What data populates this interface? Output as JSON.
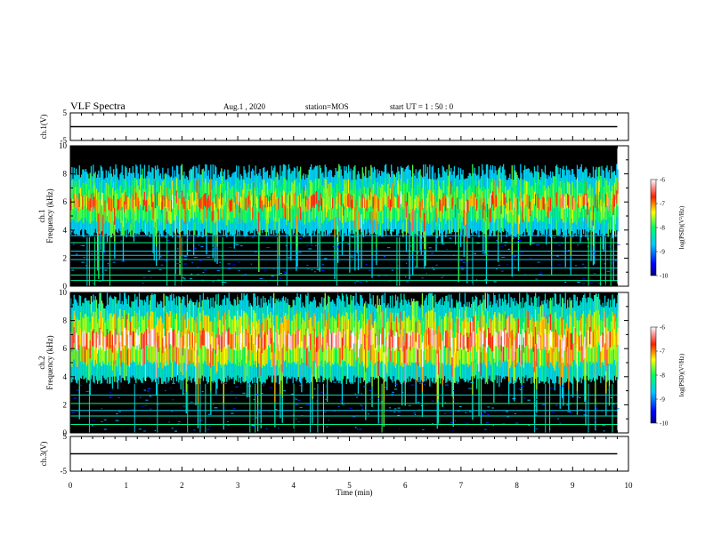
{
  "header": {
    "title": "VLF Spectra",
    "date": "Aug.1 , 2020",
    "station": "station=MOS",
    "start": "start UT = 1 : 50 : 0"
  },
  "colors": {
    "background": "#000000",
    "line": "#000000"
  },
  "chart_data": [
    {
      "type": "line",
      "panel": "ch1-waveform",
      "ylabel": "ch.1(V)",
      "ylim": [
        -5,
        5
      ],
      "yticks": [
        "5",
        "-5"
      ],
      "x": [
        0,
        9.8
      ],
      "values": [
        0,
        0
      ]
    },
    {
      "type": "heatmap",
      "panel": "ch1-spectrogram",
      "ylabel": "ch.1\nFrequency (kHz)",
      "ylabel_lines": [
        "ch.1",
        "Frequency (kHz)"
      ],
      "ylim": [
        0,
        10
      ],
      "yticks": [
        "0",
        "2",
        "4",
        "6",
        "8",
        "10"
      ],
      "xlim": [
        0,
        10
      ],
      "data_xmax": 9.8,
      "colorbar": {
        "label": "log(PSD)(V²/Hz)",
        "range": [
          -10,
          -6
        ],
        "ticks": [
          "-6",
          "-7",
          "-8",
          "-9",
          "-10"
        ]
      },
      "band_khz": [
        3.5,
        8.7
      ],
      "lines_khz": [
        0.4,
        0.8,
        1.3,
        1.9,
        2.2,
        2.5,
        3.1,
        3.6
      ]
    },
    {
      "type": "heatmap",
      "panel": "ch2-spectrogram",
      "ylabel": "ch.2\nFrequency (kHz)",
      "ylabel_lines": [
        "ch.2",
        "Frequency (kHz)"
      ],
      "ylim": [
        0,
        10
      ],
      "yticks": [
        "0",
        "2",
        "4",
        "6",
        "8",
        "10"
      ],
      "xlim": [
        0,
        10
      ],
      "data_xmax": 9.8,
      "colorbar": {
        "label": "log(PSD)(V²/Hz)",
        "range": [
          -10,
          -6
        ],
        "ticks": [
          "-6",
          "-7",
          "-8",
          "-9",
          "-10"
        ]
      },
      "band_khz": [
        3.5,
        10
      ],
      "lines_khz": [
        0.6,
        1.2,
        1.6,
        2.1,
        2.7
      ]
    },
    {
      "type": "line",
      "panel": "ch3-waveform",
      "ylabel": "ch.3(V)",
      "ylim": [
        -5,
        5
      ],
      "yticks": [
        "5",
        "-5"
      ],
      "x": [
        0,
        9.8
      ],
      "values": [
        0,
        0
      ]
    }
  ],
  "xaxis": {
    "label": "Time (min)",
    "range": [
      0,
      10
    ],
    "ticks": [
      "0",
      "1",
      "2",
      "3",
      "4",
      "5",
      "6",
      "7",
      "8",
      "9",
      "10"
    ]
  }
}
